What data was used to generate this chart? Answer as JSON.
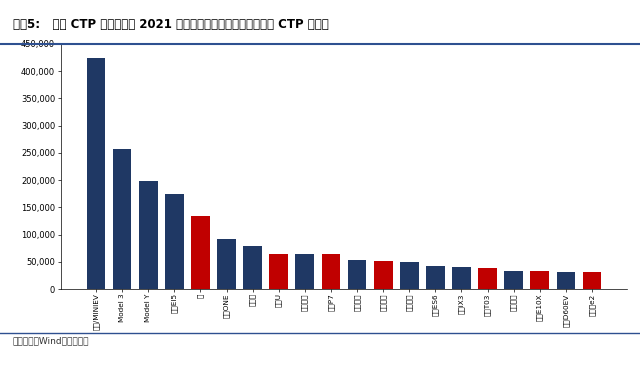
{
  "title": "图表5:   搭载 CTP 电池的车型 2021 年国内销量（单位：辆，红色为 CTP 车型）",
  "source": "资料来源：Wind，华泰研究",
  "categories": [
    "宋光/MINIEV",
    "Model 3",
    "Model Y",
    "宋成EI5",
    "汉",
    "理想ONE",
    "小蚂蚁",
    "哪吒U",
    "欧拉黑猫",
    "小鹏P7",
    "唐新能源",
    "欧拉好猫",
    "家新能源",
    "蔚来ES6",
    "宝马iX3",
    "零跑T03",
    "零新能源",
    "忠号E10X",
    "启辰D60EV",
    "比亚迪e2"
  ],
  "values": [
    425000,
    258000,
    198000,
    175000,
    135000,
    92000,
    80000,
    65000,
    64000,
    64000,
    53000,
    51000,
    49000,
    42000,
    40000,
    39000,
    34000,
    33000,
    32000,
    32000
  ],
  "is_red": [
    false,
    false,
    false,
    false,
    true,
    false,
    false,
    true,
    false,
    true,
    false,
    true,
    false,
    false,
    false,
    true,
    false,
    true,
    false,
    true
  ],
  "bar_color_blue": "#1F3864",
  "bar_color_red": "#C00000",
  "ylim": [
    0,
    450000
  ],
  "yticks": [
    0,
    50000,
    100000,
    150000,
    200000,
    250000,
    300000,
    350000,
    400000,
    450000
  ],
  "bg_color": "#FFFFFF",
  "title_color": "#000000",
  "title_fontsize": 8.5,
  "source_fontsize": 6.5
}
